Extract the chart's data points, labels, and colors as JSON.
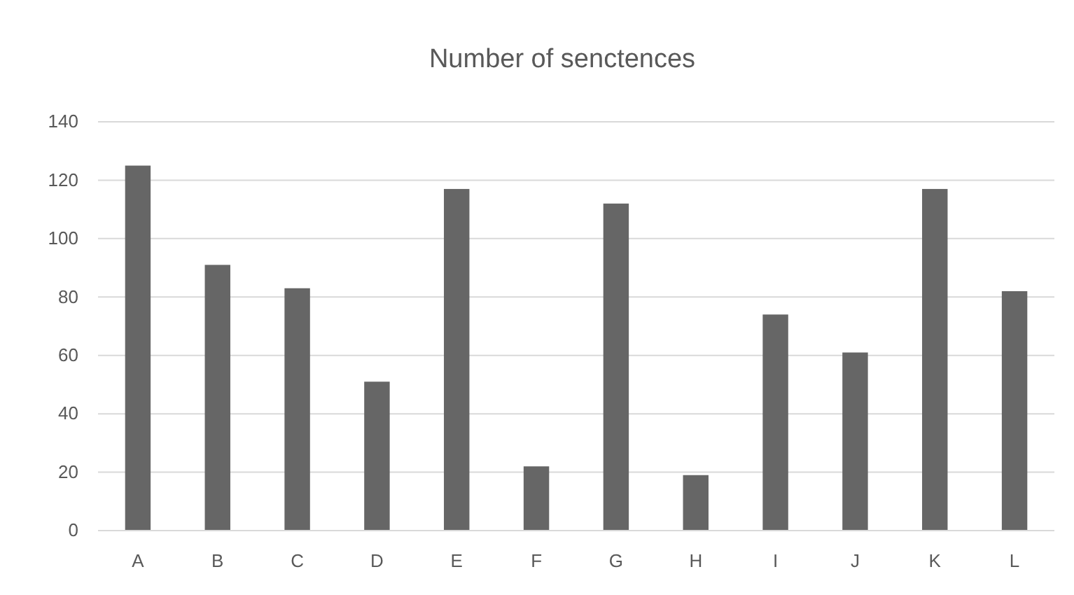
{
  "chart_data": {
    "type": "bar",
    "title": "Number of senctences",
    "categories": [
      "A",
      "B",
      "C",
      "D",
      "E",
      "F",
      "G",
      "H",
      "I",
      "J",
      "K",
      "L"
    ],
    "values": [
      125,
      91,
      83,
      51,
      117,
      22,
      112,
      19,
      74,
      61,
      117,
      82
    ],
    "color": "#666666",
    "ylim": [
      0,
      140
    ],
    "yticks": [
      0,
      20,
      40,
      60,
      80,
      100,
      120,
      140
    ],
    "grid": "y"
  }
}
